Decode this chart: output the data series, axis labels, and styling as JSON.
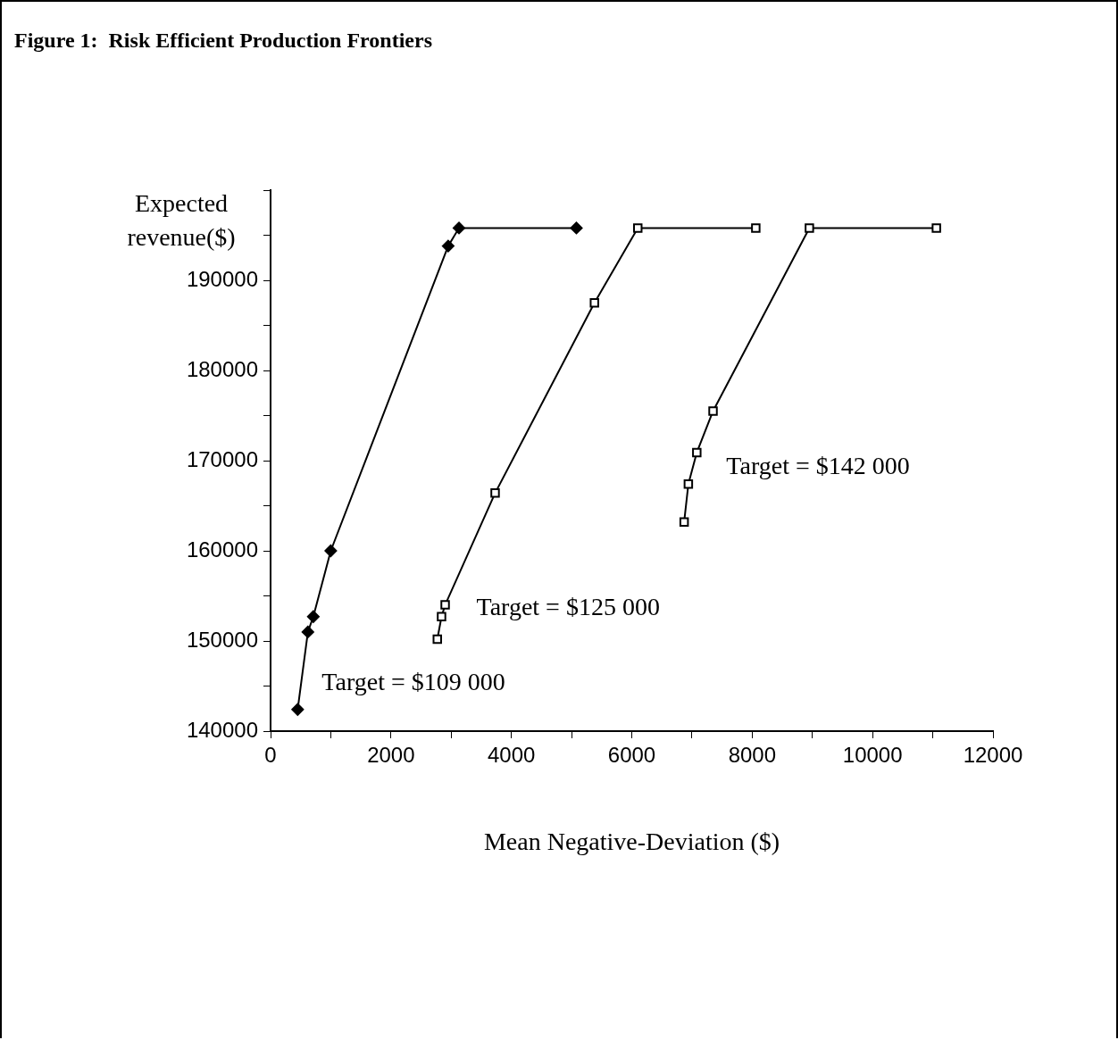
{
  "chart_data": {
    "type": "line",
    "title": "Figure 1:  Risk Efficient Production Frontiers",
    "xlabel": "Mean Negative-Deviation ($)",
    "ylabel": "Expected revenue($)",
    "xlim": [
      0,
      12000
    ],
    "ylim": [
      140000,
      200000
    ],
    "xticks": [
      0,
      {
        "value": 1000,
        "label": null
      },
      2000,
      {
        "value": 3000,
        "label": null
      },
      4000,
      {
        "value": 5000,
        "label": null
      },
      6000,
      {
        "value": 7000,
        "label": null
      },
      8000,
      {
        "value": 9000,
        "label": null
      },
      10000,
      {
        "value": 11000,
        "label": null
      },
      12000
    ],
    "yticks": [
      140000,
      {
        "value": 145000,
        "label": null
      },
      150000,
      {
        "value": 155000,
        "label": null
      },
      160000,
      {
        "value": 165000,
        "label": null
      },
      170000,
      {
        "value": 175000,
        "label": null
      },
      180000,
      {
        "value": 185000,
        "label": null
      },
      190000,
      {
        "value": 195000,
        "label": null
      },
      {
        "value": 200000,
        "label": null
      }
    ],
    "grid": false,
    "legend": false,
    "line_style": "solid",
    "series": [
      {
        "name": "Target = $109 000",
        "color": "#000000",
        "marker": "diamond",
        "x": [
          450,
          620,
          710,
          1000,
          2950,
          3130,
          5080
        ],
        "values": [
          142400,
          151000,
          152700,
          160000,
          193800,
          195800,
          195800
        ]
      },
      {
        "name": "Target = $125 000",
        "color": "#000000",
        "marker": "square",
        "x": [
          2770,
          2840,
          2900,
          3730,
          5380,
          6100,
          8060
        ],
        "values": [
          150200,
          152700,
          154000,
          166400,
          187500,
          195800,
          195800
        ]
      },
      {
        "name": "Target = $142 000",
        "color": "#000000",
        "marker": "square",
        "x": [
          6870,
          6940,
          7080,
          7350,
          8950,
          11060
        ],
        "values": [
          163200,
          167400,
          170900,
          175500,
          195800,
          195800
        ]
      }
    ]
  }
}
